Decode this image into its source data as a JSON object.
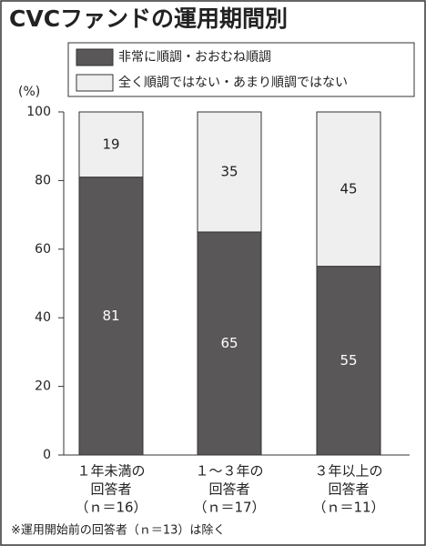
{
  "chart_data": {
    "type": "stacked_bar",
    "title": "CVCファンドの運用期間別",
    "y_unit": "(%)",
    "categories": [
      [
        "１年未満の",
        "回答者",
        "（ｎ＝16）"
      ],
      [
        "１～３年の",
        "回答者",
        "（ｎ＝17）"
      ],
      [
        "３年以上の",
        "回答者",
        "（ｎ＝11）"
      ]
    ],
    "series": [
      {
        "name": "非常に順調・おおむね順調",
        "color": "#595757",
        "label_color": "#ffffff",
        "values": [
          81,
          65,
          55
        ]
      },
      {
        "name": "全く順調ではない・あまり順調ではない",
        "color": "#efefef",
        "label_color": "#222222",
        "values": [
          19,
          35,
          45
        ]
      }
    ],
    "ylim": [
      0,
      100
    ],
    "yticks": [
      0,
      20,
      40,
      60,
      80,
      100
    ],
    "footnote": "※運用開始前の回答者（ｎ＝13）は除く"
  }
}
